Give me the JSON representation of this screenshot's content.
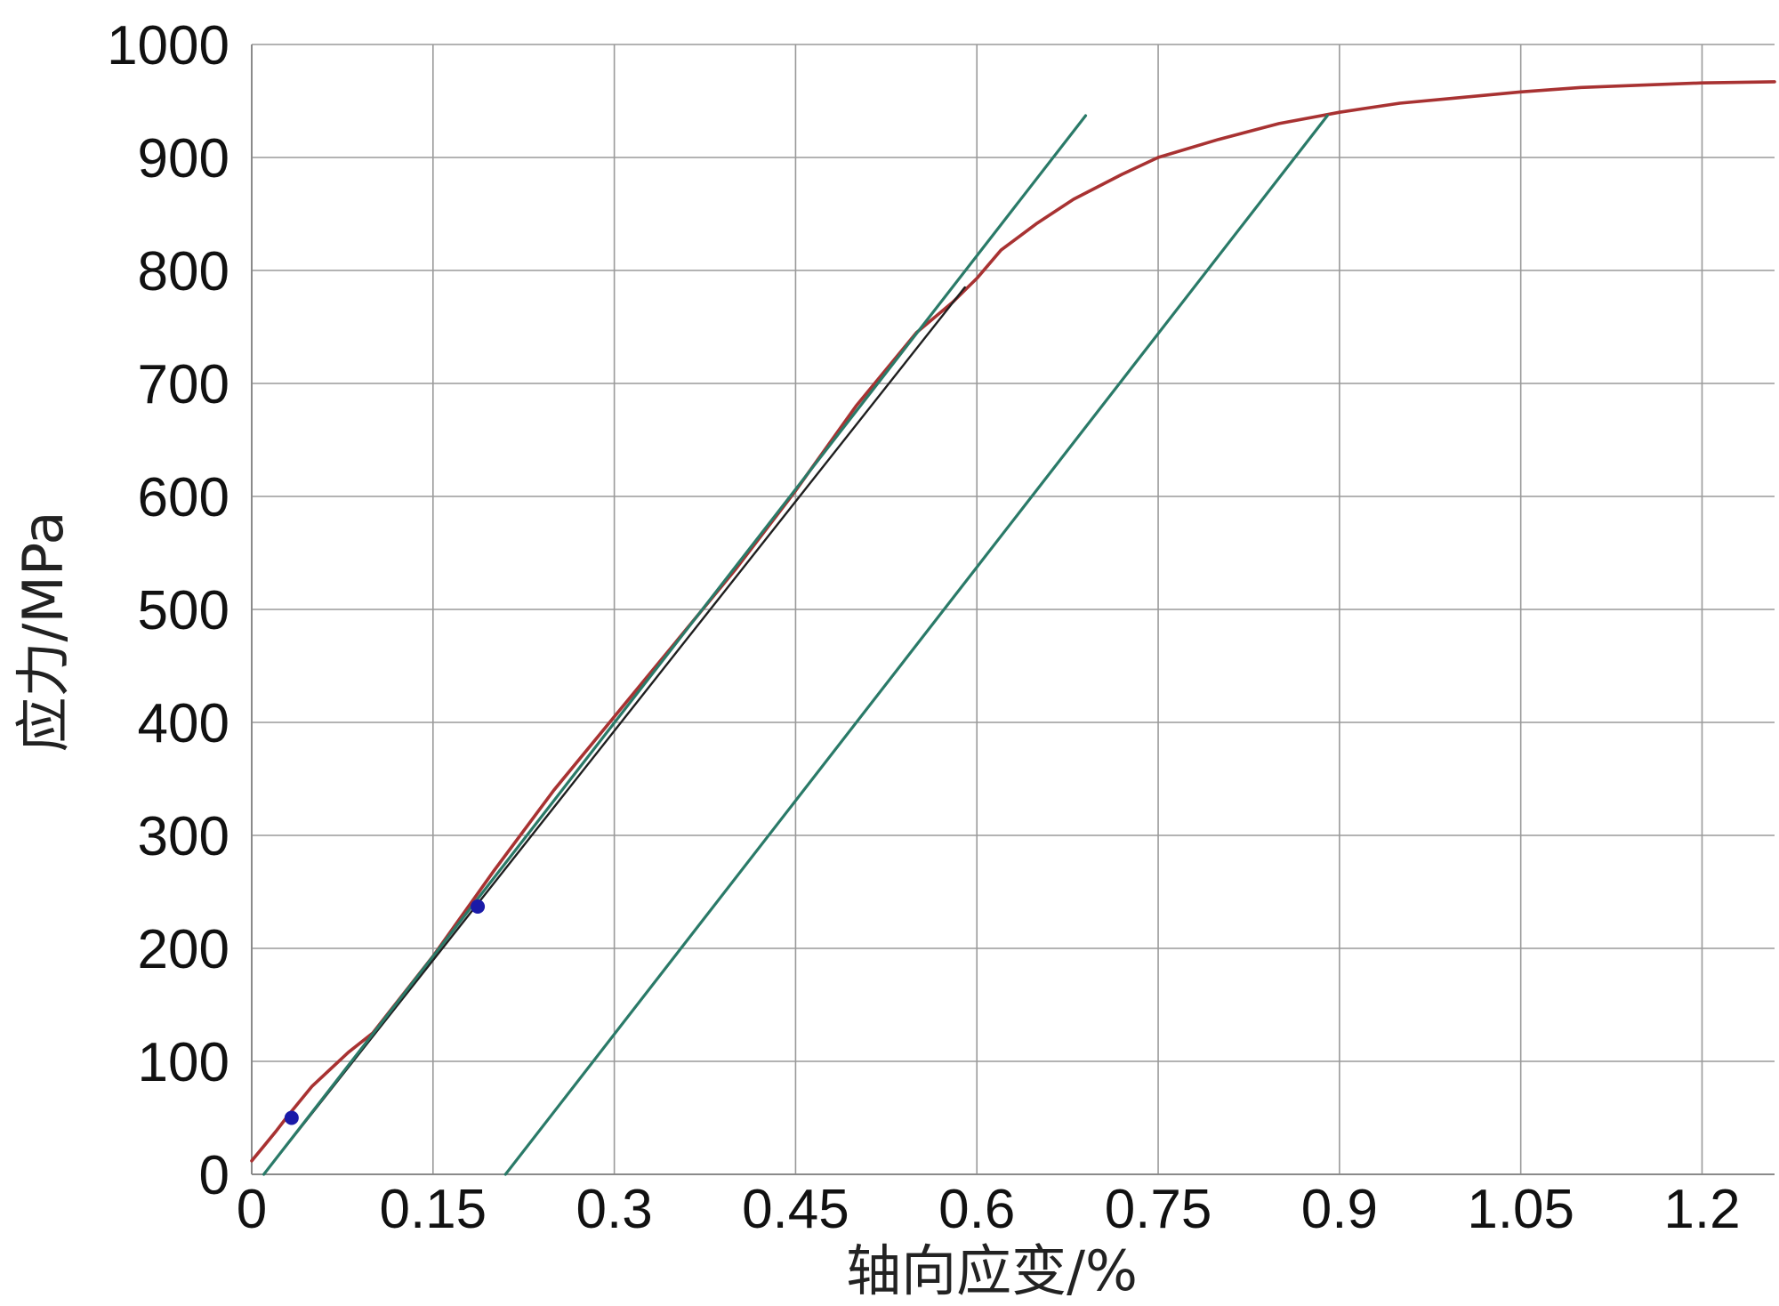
{
  "chart_data": {
    "type": "line",
    "xlabel": "轴向应变/%",
    "ylabel": "应力/MPa",
    "xlim": [
      0,
      1.26
    ],
    "ylim": [
      0,
      1000
    ],
    "x_ticks": [
      "0",
      "0.15",
      "0.3",
      "0.45",
      "0.6",
      "0.75",
      "0.9",
      "1.05",
      "1.2"
    ],
    "x_tick_values": [
      0,
      0.15,
      0.3,
      0.45,
      0.6,
      0.75,
      0.9,
      1.05,
      1.2
    ],
    "y_ticks": [
      "0",
      "100",
      "200",
      "300",
      "400",
      "500",
      "600",
      "700",
      "800",
      "900",
      "1000"
    ],
    "y_tick_values": [
      0,
      100,
      200,
      300,
      400,
      500,
      600,
      700,
      800,
      900,
      1000
    ],
    "grid": true,
    "legend": "none",
    "series": [
      {
        "color": "#a83232",
        "x": [
          0,
          0.01,
          0.02,
          0.03,
          0.05,
          0.08,
          0.1,
          0.15,
          0.2,
          0.25,
          0.3,
          0.35,
          0.4,
          0.45,
          0.5,
          0.55,
          0.58,
          0.6,
          0.62,
          0.65,
          0.68,
          0.7,
          0.72,
          0.75,
          0.8,
          0.85,
          0.9,
          0.95,
          1.0,
          1.05,
          1.1,
          1.15,
          1.2,
          1.26
        ],
        "y": [
          12,
          25,
          38,
          52,
          78,
          108,
          125,
          193,
          268,
          340,
          405,
          470,
          535,
          605,
          680,
          745,
          772,
          793,
          818,
          842,
          863,
          874,
          885,
          900,
          916,
          930,
          940,
          948,
          953,
          958,
          962,
          964,
          966,
          967
        ]
      },
      {
        "color": "#1f1f1f",
        "x": [
          0.01,
          0.59
        ],
        "y": [
          0,
          785
        ]
      },
      {
        "color": "#2a7a68",
        "x": [
          0.01,
          0.69
        ],
        "y": [
          0,
          937
        ]
      },
      {
        "color": "#2a7a68",
        "x": [
          0.21,
          0.89
        ],
        "y": [
          0,
          937
        ]
      }
    ],
    "markers": [
      {
        "x": 0.033,
        "y": 50,
        "color": "#1a1aa8"
      },
      {
        "x": 0.187,
        "y": 237,
        "color": "#1a1aa8"
      }
    ]
  }
}
